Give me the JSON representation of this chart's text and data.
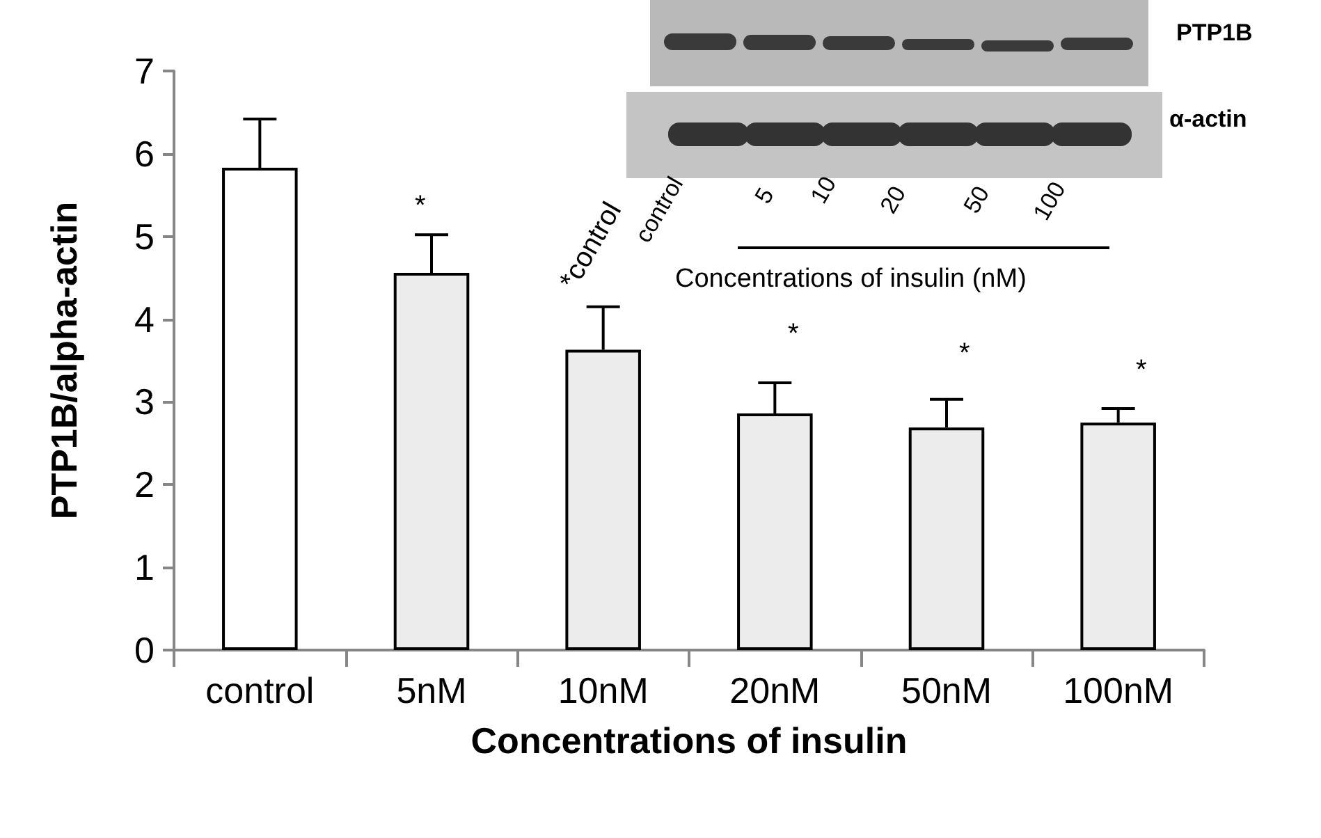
{
  "chart_data": {
    "type": "bar",
    "xlabel": "Concentrations of insulin",
    "ylabel": "PTP1B/alpha-actin",
    "categories": [
      "control",
      "5nM",
      "10nM",
      "20nM",
      "50nM",
      "100nM"
    ],
    "values": [
      5.83,
      4.56,
      3.63,
      2.86,
      2.69,
      2.75
    ],
    "colors": [
      "#ffffff",
      "#ececec",
      "#ececec",
      "#ececec",
      "#ececec",
      "#ececec"
    ],
    "errors": [
      [
        5.83,
        6.42
      ],
      [
        4.56,
        5.02
      ],
      [
        3.63,
        4.15
      ],
      [
        2.86,
        3.23
      ],
      [
        2.69,
        3.03
      ],
      [
        2.75,
        2.92
      ]
    ],
    "ylim": [
      0,
      7
    ],
    "yticks": [
      0,
      1,
      2,
      3,
      4,
      5,
      6,
      7
    ],
    "annotations": [
      "*",
      "*control",
      "*",
      "*",
      "*",
      "PTP1B",
      "α-actin",
      "control",
      "5",
      "10",
      "20",
      "50",
      "100",
      "Concentrations of insulin (nM)"
    ]
  }
}
